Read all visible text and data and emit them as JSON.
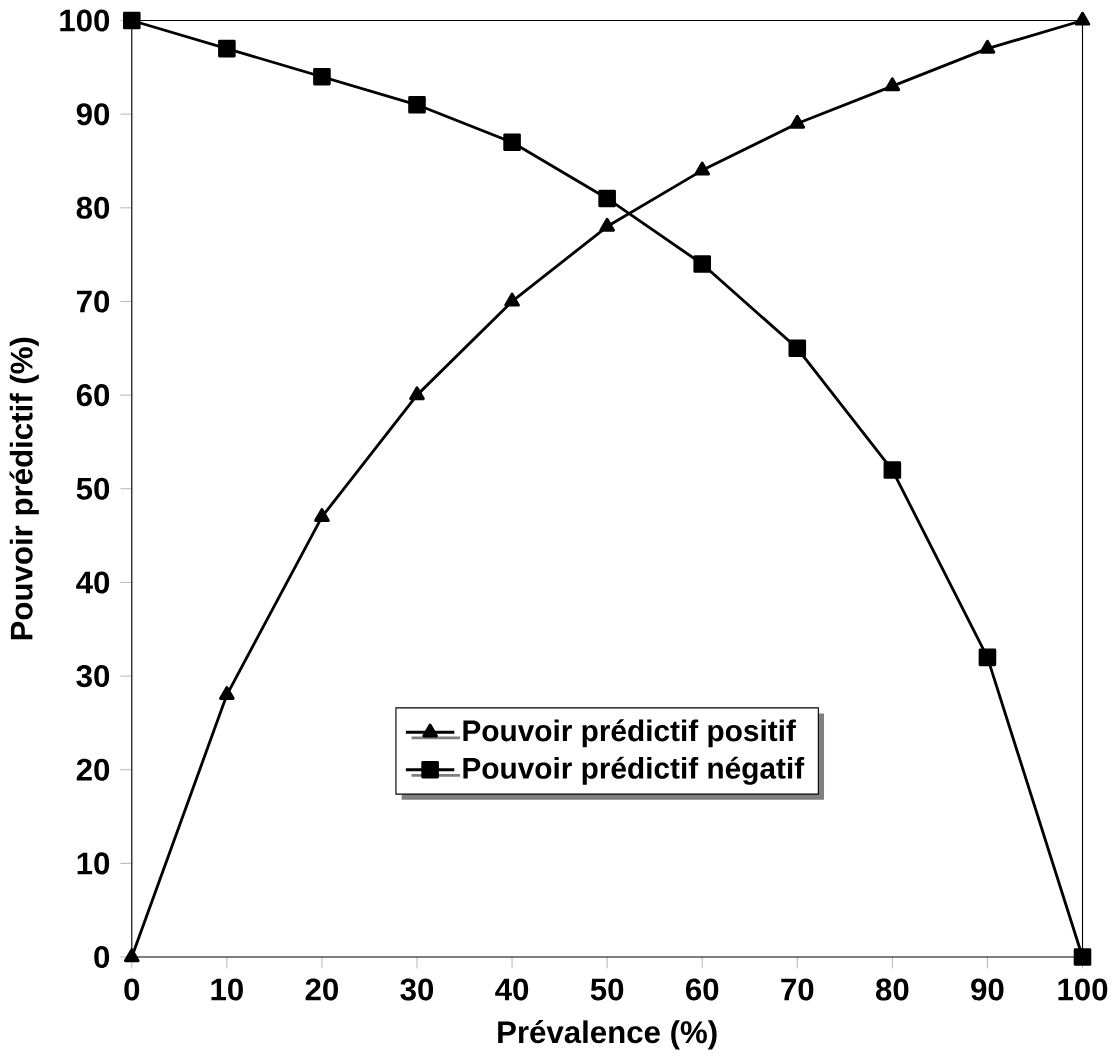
{
  "chart_data": {
    "type": "line",
    "xlabel": "Prévalence (%)",
    "ylabel": "Pouvoir prédictif (%)",
    "x": [
      0,
      10,
      20,
      30,
      40,
      50,
      60,
      70,
      80,
      90,
      100
    ],
    "series": [
      {
        "name": "Pouvoir prédictif positif",
        "color": "#000000",
        "marker": "triangle",
        "values": [
          0,
          28,
          47,
          60,
          70,
          78,
          84,
          89,
          93,
          97,
          100
        ]
      },
      {
        "name": "Pouvoir prédictif négatif",
        "color": "#000000",
        "marker": "square",
        "values": [
          100,
          97,
          94,
          91,
          87,
          81,
          74,
          65,
          52,
          32,
          0
        ]
      }
    ],
    "xlim": [
      0,
      100
    ],
    "ylim": [
      0,
      100
    ],
    "xticks": [
      0,
      10,
      20,
      30,
      40,
      50,
      60,
      70,
      80,
      90,
      100
    ],
    "yticks": [
      0,
      10,
      20,
      30,
      40,
      50,
      60,
      70,
      80,
      90,
      100
    ],
    "grid": false,
    "legend": "bottom",
    "line_style": "solid"
  }
}
